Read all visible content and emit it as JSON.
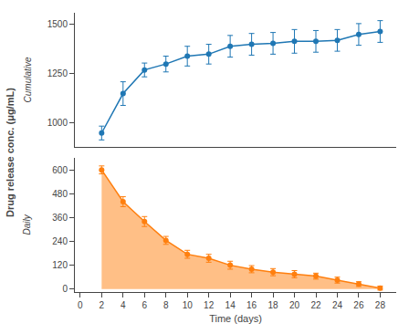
{
  "chart_data": [
    {
      "type": "line",
      "annotations": [
        "Cumulative"
      ],
      "x": [
        2,
        4,
        6,
        8,
        10,
        12,
        14,
        16,
        18,
        20,
        22,
        24,
        26,
        28
      ],
      "series": [
        {
          "values": [
            950,
            1150,
            1270,
            1300,
            1340,
            1350,
            1390,
            1400,
            1405,
            1415,
            1415,
            1420,
            1450,
            1465
          ],
          "yerr": [
            35,
            60,
            35,
            40,
            50,
            50,
            55,
            55,
            55,
            60,
            55,
            55,
            55,
            55
          ],
          "marker": "circle"
        }
      ],
      "xlim": [
        -0.5,
        29.5
      ],
      "xticks": [
        0,
        2,
        4,
        6,
        8,
        10,
        12,
        14,
        16,
        18,
        20,
        22,
        24,
        26,
        28
      ],
      "ylim": [
        880,
        1560
      ],
      "yticks": [
        1000,
        1250,
        1500
      ],
      "grid": false,
      "tick_labels": "y"
    },
    {
      "type": "area",
      "annotations": [
        "Daily"
      ],
      "xlabel": "Time (days)",
      "ylabel": "Drug release conc. (μg/mL)",
      "x": [
        2,
        4,
        6,
        8,
        10,
        12,
        14,
        16,
        18,
        20,
        22,
        24,
        26,
        28
      ],
      "series": [
        {
          "values": [
            600,
            440,
            340,
            245,
            175,
            155,
            120,
            100,
            85,
            75,
            65,
            45,
            25,
            5
          ],
          "yerr": [
            20,
            25,
            25,
            20,
            20,
            20,
            20,
            18,
            18,
            18,
            15,
            15,
            12,
            10
          ],
          "marker": "circle"
        }
      ],
      "xlim": [
        -0.5,
        29.5
      ],
      "xticks": [
        0,
        2,
        4,
        6,
        8,
        10,
        12,
        14,
        16,
        18,
        20,
        22,
        24,
        26,
        28
      ],
      "ylim": [
        -15,
        660
      ],
      "yticks": [
        0,
        120,
        240,
        360,
        480,
        600
      ],
      "grid": false
    }
  ]
}
